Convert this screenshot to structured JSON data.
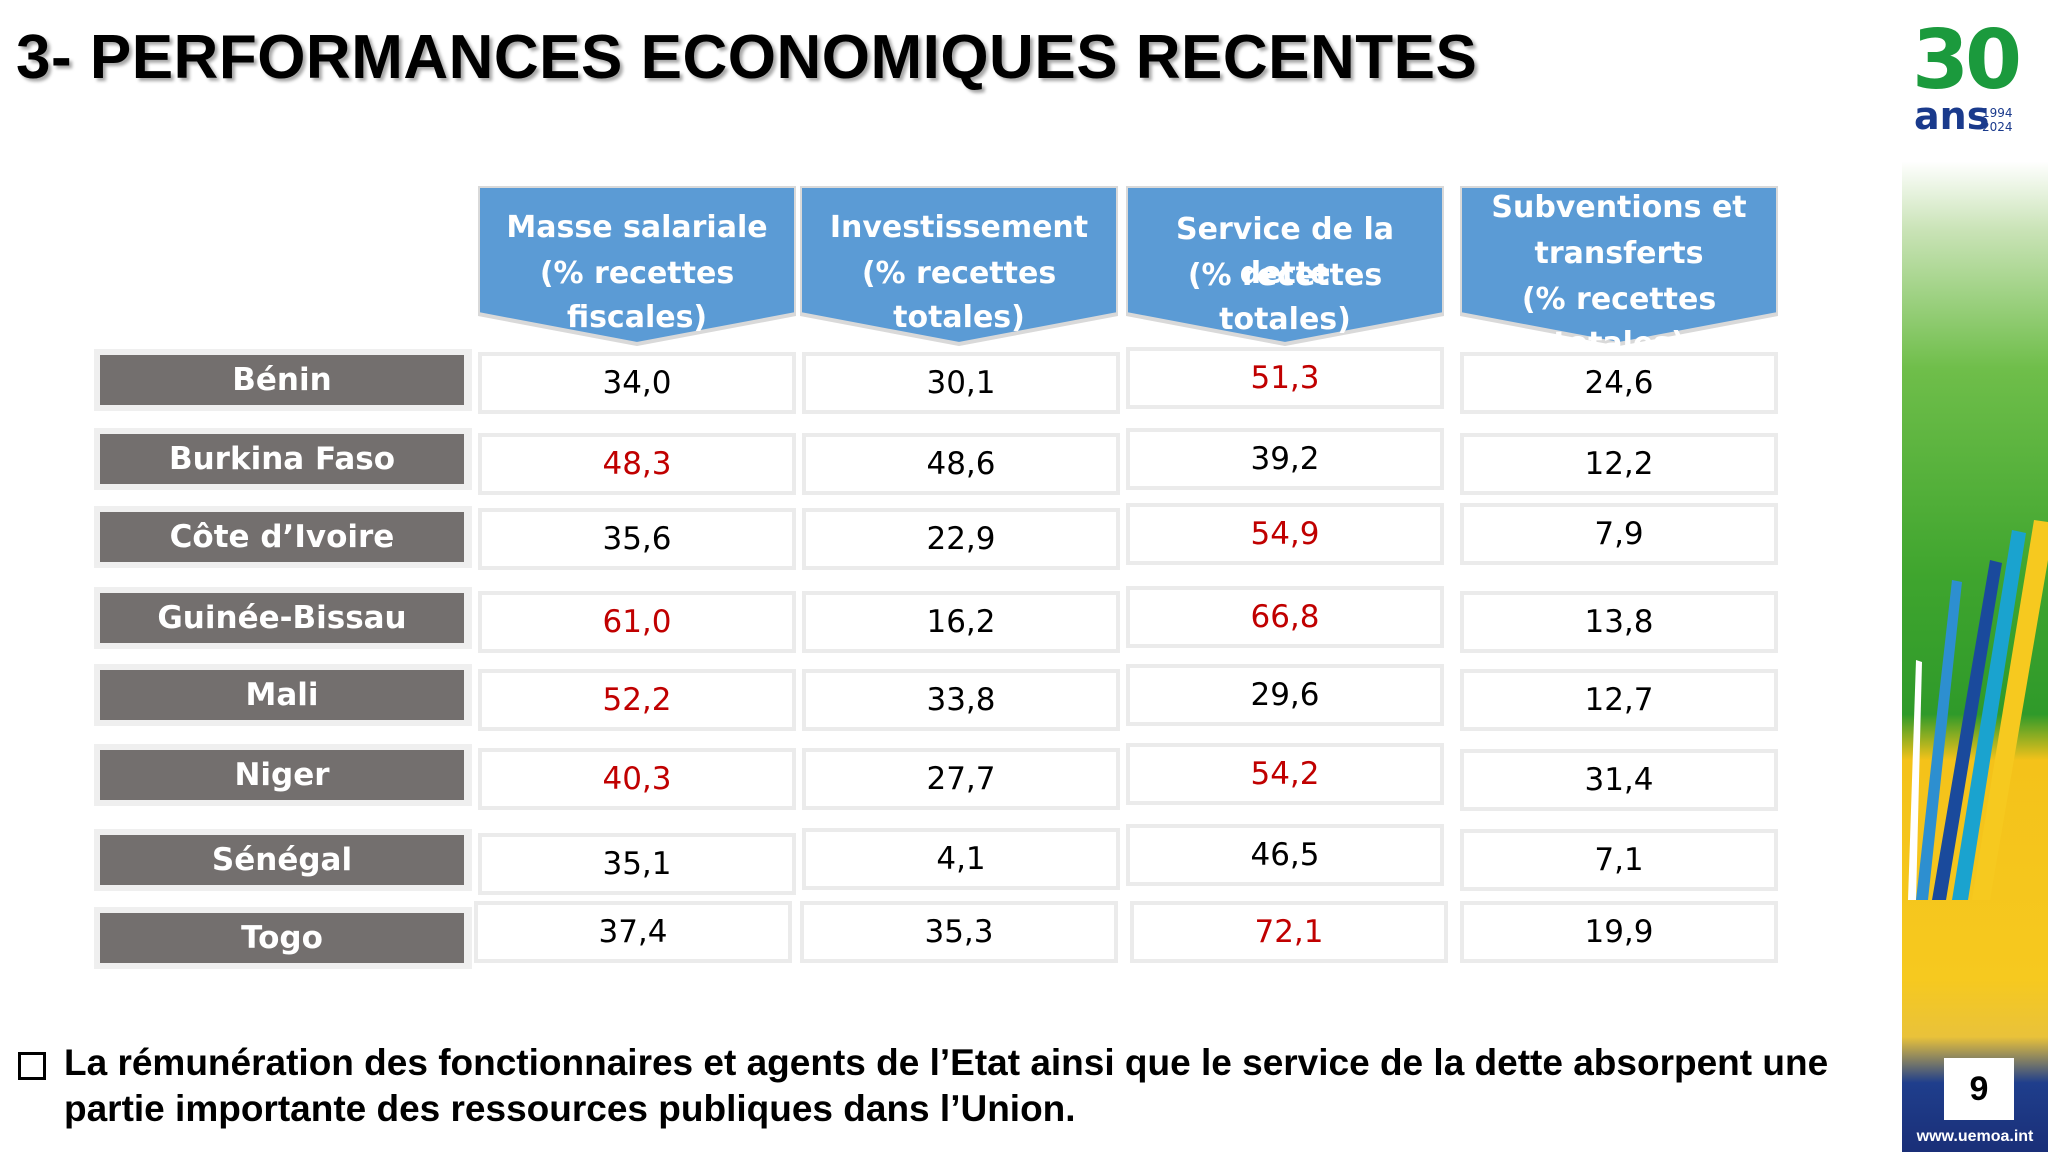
{
  "title": "3- PERFORMANCES ECONOMIQUES RECENTES",
  "logo": {
    "number": "30",
    "word": "ans",
    "year_start": "1994",
    "year_end": "2024"
  },
  "page_number": "9",
  "website": "www.uemoa.int",
  "colors": {
    "header_blue": "#5b9bd5",
    "label_gray": "#736f6e",
    "highlight_red": "#c00000"
  },
  "columns": [
    {
      "line1": "Masse salariale",
      "line2": "(% recettes fiscales)",
      "line3": ""
    },
    {
      "line1": "Investissement",
      "line2": "(% recettes totales)",
      "line3": ""
    },
    {
      "line1": "Service de la dette",
      "line2": "(% recettes totales)",
      "line3": ""
    },
    {
      "line1": "Subventions et",
      "line2": "transferts",
      "line3": "(% recettes totales)"
    }
  ],
  "rows": [
    {
      "country": "Bénin",
      "values": [
        "34,0",
        "30,1",
        "51,3",
        "24,6"
      ],
      "highlight": [
        false,
        false,
        true,
        false
      ]
    },
    {
      "country": "Burkina Faso",
      "values": [
        "48,3",
        "48,6",
        "39,2",
        "12,2"
      ],
      "highlight": [
        true,
        false,
        false,
        false
      ]
    },
    {
      "country": "Côte d’Ivoire",
      "values": [
        "35,6",
        "22,9",
        "54,9",
        "7,9"
      ],
      "highlight": [
        false,
        false,
        true,
        false
      ]
    },
    {
      "country": "Guinée-Bissau",
      "values": [
        "61,0",
        "16,2",
        "66,8",
        "13,8"
      ],
      "highlight": [
        true,
        false,
        true,
        false
      ]
    },
    {
      "country": "Mali",
      "values": [
        "52,2",
        "33,8",
        "29,6",
        "12,7"
      ],
      "highlight": [
        true,
        false,
        false,
        false
      ]
    },
    {
      "country": "Niger",
      "values": [
        "40,3",
        "27,7",
        "54,2",
        "31,4"
      ],
      "highlight": [
        true,
        false,
        true,
        false
      ]
    },
    {
      "country": "Sénégal",
      "values": [
        "35,1",
        "4,1",
        "46,5",
        "7,1"
      ],
      "highlight": [
        false,
        false,
        false,
        false
      ]
    },
    {
      "country": "Togo",
      "values": [
        "37,4",
        "35,3",
        "72,1",
        "19,9"
      ],
      "highlight": [
        false,
        false,
        true,
        false
      ]
    }
  ],
  "note": "La rémunération des fonctionnaires et agents de l’Etat ainsi que le service de la dette absorpent une partie importante des ressources publiques dans l’Union."
}
